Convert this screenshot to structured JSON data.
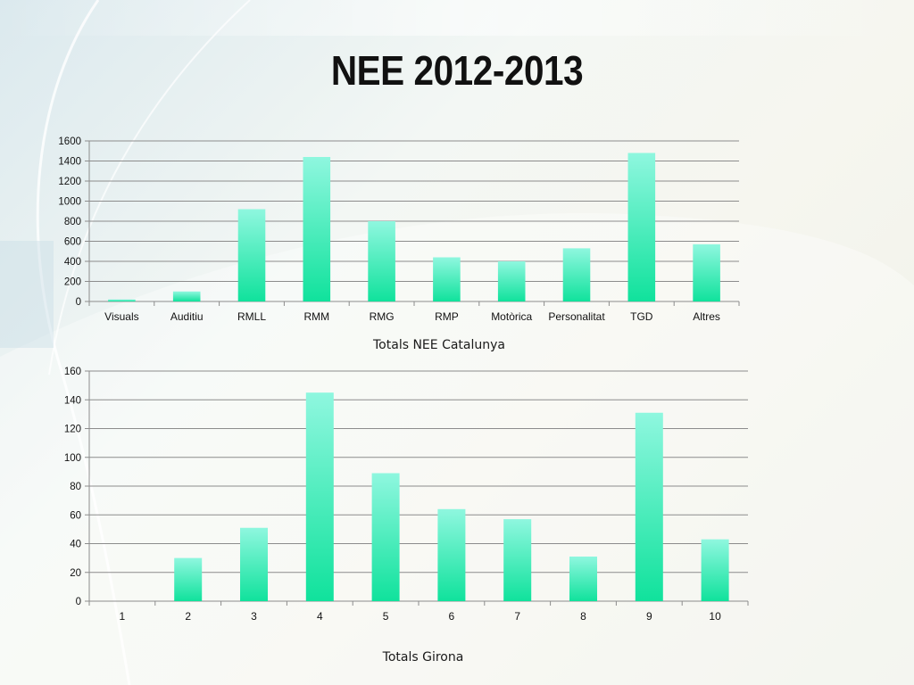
{
  "slide": {
    "title": "NEE 2012-2013",
    "colors": {
      "bar_top": "#8ff7df",
      "bar_bottom": "#10e29c",
      "gridline": "#8c8c8c",
      "text": "#111111"
    }
  },
  "chart_data": [
    {
      "type": "bar",
      "caption": "Totals NEE Catalunya",
      "categories": [
        "Visuals",
        "Auditiu",
        "RMLL",
        "RMM",
        "RMG",
        "RMP",
        "Motòrica",
        "Personalitat",
        "TGD",
        "Altres"
      ],
      "values": [
        20,
        100,
        920,
        1440,
        800,
        440,
        400,
        530,
        1480,
        570
      ],
      "ylim": [
        0,
        1600
      ],
      "yticks": [
        0,
        200,
        400,
        600,
        800,
        1000,
        1200,
        1400,
        1600
      ],
      "grid": true,
      "legend": "none"
    },
    {
      "type": "bar",
      "caption": "Totals Girona",
      "categories": [
        "1",
        "2",
        "3",
        "4",
        "5",
        "6",
        "7",
        "8",
        "9",
        "10"
      ],
      "values": [
        0,
        30,
        51,
        145,
        89,
        64,
        57,
        31,
        131,
        43
      ],
      "ylim": [
        0,
        160
      ],
      "yticks": [
        0,
        20,
        40,
        60,
        80,
        100,
        120,
        140,
        160
      ],
      "grid": true,
      "legend": "none"
    }
  ]
}
